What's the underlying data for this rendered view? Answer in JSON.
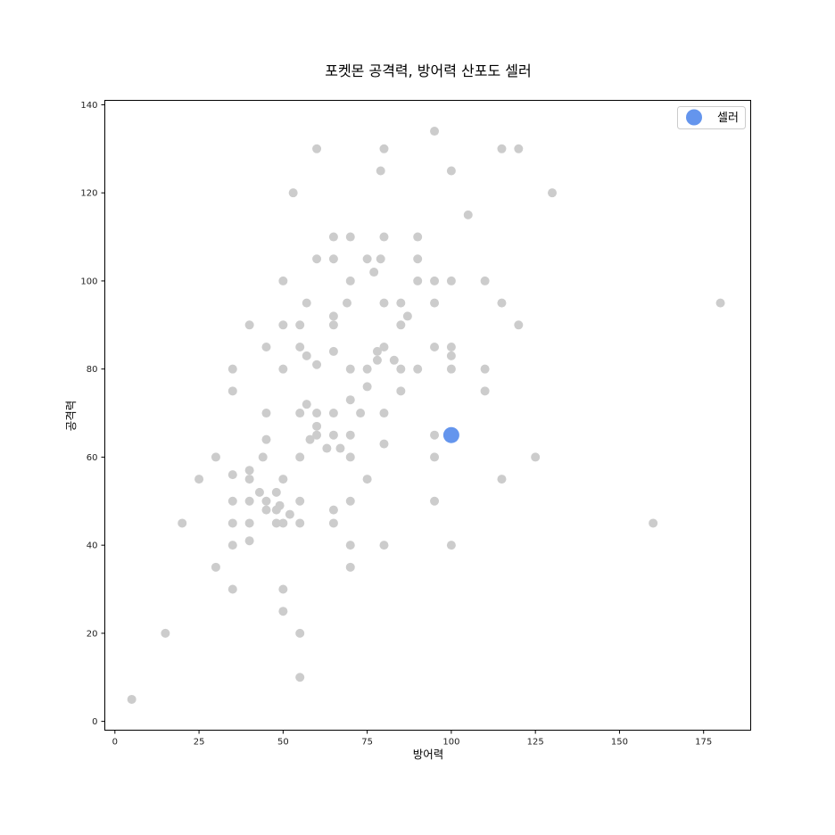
{
  "chart_data": {
    "type": "scatter",
    "title": "포켓몬 공격력, 방어력 산포도 셀러",
    "xlabel": "방어력",
    "ylabel": "공격력",
    "xlim": [
      -3,
      189
    ],
    "ylim": [
      -2,
      141
    ],
    "xticks": [
      0,
      25,
      50,
      75,
      100,
      125,
      150,
      175
    ],
    "yticks": [
      0,
      20,
      40,
      60,
      80,
      100,
      120,
      140
    ],
    "grid": false,
    "legend_position": "top-right",
    "series": [
      {
        "color": "#cccccc",
        "points": [
          [
            5,
            5
          ],
          [
            15,
            20
          ],
          [
            20,
            45
          ],
          [
            25,
            55
          ],
          [
            30,
            60
          ],
          [
            30,
            35
          ],
          [
            35,
            80
          ],
          [
            35,
            75
          ],
          [
            35,
            56
          ],
          [
            35,
            50
          ],
          [
            35,
            45
          ],
          [
            35,
            40
          ],
          [
            35,
            30
          ],
          [
            40,
            90
          ],
          [
            40,
            57
          ],
          [
            40,
            55
          ],
          [
            40,
            50
          ],
          [
            40,
            45
          ],
          [
            40,
            41
          ],
          [
            43,
            52
          ],
          [
            44,
            60
          ],
          [
            45,
            85
          ],
          [
            45,
            70
          ],
          [
            45,
            64
          ],
          [
            45,
            50
          ],
          [
            45,
            48
          ],
          [
            48,
            52
          ],
          [
            48,
            48
          ],
          [
            48,
            45
          ],
          [
            49,
            49
          ],
          [
            50,
            100
          ],
          [
            50,
            90
          ],
          [
            50,
            80
          ],
          [
            50,
            55
          ],
          [
            50,
            45
          ],
          [
            50,
            30
          ],
          [
            50,
            25
          ],
          [
            52,
            47
          ],
          [
            53,
            120
          ],
          [
            55,
            90
          ],
          [
            55,
            85
          ],
          [
            55,
            70
          ],
          [
            55,
            60
          ],
          [
            55,
            50
          ],
          [
            55,
            45
          ],
          [
            55,
            20
          ],
          [
            55,
            10
          ],
          [
            57,
            95
          ],
          [
            57,
            83
          ],
          [
            57,
            72
          ],
          [
            58,
            64
          ],
          [
            60,
            130
          ],
          [
            60,
            105
          ],
          [
            60,
            81
          ],
          [
            60,
            70
          ],
          [
            60,
            67
          ],
          [
            60,
            65
          ],
          [
            63,
            62
          ],
          [
            65,
            110
          ],
          [
            65,
            105
          ],
          [
            65,
            92
          ],
          [
            65,
            90
          ],
          [
            65,
            84
          ],
          [
            65,
            70
          ],
          [
            65,
            65
          ],
          [
            65,
            48
          ],
          [
            65,
            45
          ],
          [
            67,
            62
          ],
          [
            69,
            95
          ],
          [
            70,
            110
          ],
          [
            70,
            100
          ],
          [
            70,
            80
          ],
          [
            70,
            73
          ],
          [
            70,
            65
          ],
          [
            70,
            60
          ],
          [
            70,
            50
          ],
          [
            70,
            40
          ],
          [
            70,
            35
          ],
          [
            73,
            70
          ],
          [
            75,
            105
          ],
          [
            75,
            80
          ],
          [
            75,
            76
          ],
          [
            75,
            55
          ],
          [
            77,
            102
          ],
          [
            78,
            84
          ],
          [
            78,
            82
          ],
          [
            79,
            125
          ],
          [
            79,
            105
          ],
          [
            80,
            130
          ],
          [
            80,
            110
          ],
          [
            80,
            95
          ],
          [
            80,
            85
          ],
          [
            80,
            70
          ],
          [
            80,
            63
          ],
          [
            80,
            40
          ],
          [
            83,
            82
          ],
          [
            85,
            95
          ],
          [
            85,
            90
          ],
          [
            85,
            80
          ],
          [
            85,
            75
          ],
          [
            87,
            92
          ],
          [
            90,
            110
          ],
          [
            90,
            105
          ],
          [
            90,
            100
          ],
          [
            90,
            80
          ],
          [
            95,
            134
          ],
          [
            95,
            100
          ],
          [
            95,
            95
          ],
          [
            95,
            85
          ],
          [
            95,
            65
          ],
          [
            95,
            60
          ],
          [
            95,
            50
          ],
          [
            100,
            125
          ],
          [
            100,
            100
          ],
          [
            100,
            85
          ],
          [
            100,
            83
          ],
          [
            100,
            80
          ],
          [
            100,
            40
          ],
          [
            105,
            115
          ],
          [
            110,
            100
          ],
          [
            110,
            80
          ],
          [
            110,
            75
          ],
          [
            115,
            130
          ],
          [
            115,
            95
          ],
          [
            115,
            55
          ],
          [
            120,
            130
          ],
          [
            120,
            90
          ],
          [
            125,
            60
          ],
          [
            130,
            120
          ],
          [
            160,
            45
          ],
          [
            180,
            95
          ]
        ]
      },
      {
        "name": "셀러",
        "color": "#6495ed",
        "points": [
          [
            100,
            65
          ]
        ]
      }
    ]
  }
}
